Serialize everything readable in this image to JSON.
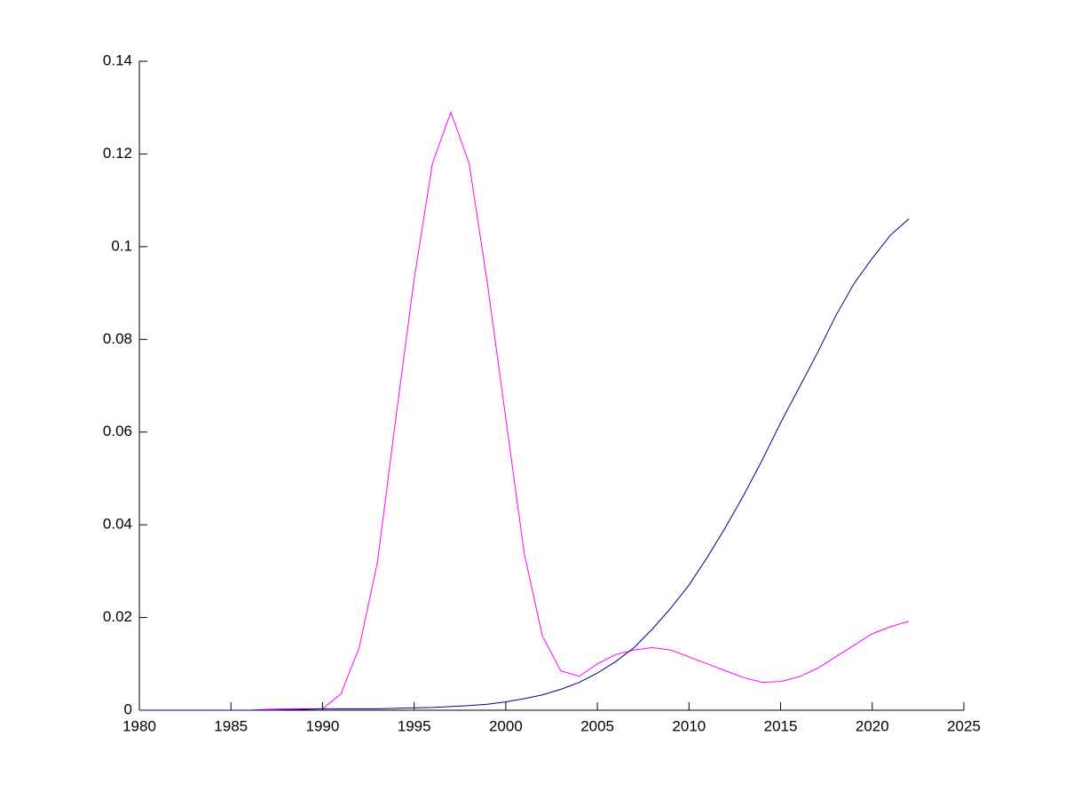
{
  "chart_data": {
    "type": "line",
    "x": [
      1980,
      1981,
      1982,
      1983,
      1984,
      1985,
      1986,
      1987,
      1988,
      1989,
      1990,
      1991,
      1992,
      1993,
      1994,
      1995,
      1996,
      1997,
      1998,
      1999,
      2000,
      2001,
      2002,
      2003,
      2004,
      2005,
      2006,
      2007,
      2008,
      2009,
      2010,
      2011,
      2012,
      2013,
      2014,
      2015,
      2016,
      2017,
      2018,
      2019,
      2020,
      2021,
      2022
    ],
    "series": [
      {
        "color": "#ff00ff",
        "values": [
          0,
          0,
          0,
          0,
          0,
          0,
          0,
          0.0002,
          0.0003,
          0.0003,
          0.0003,
          0.0035,
          0.0135,
          0.032,
          0.063,
          0.093,
          0.118,
          0.129,
          0.118,
          0.092,
          0.063,
          0.034,
          0.016,
          0.0085,
          0.0073,
          0.01,
          0.012,
          0.013,
          0.0135,
          0.013,
          0.0115,
          0.01,
          0.0085,
          0.007,
          0.006,
          0.0062,
          0.0072,
          0.009,
          0.0115,
          0.014,
          0.0165,
          0.018,
          0.0192
        ]
      },
      {
        "color": "#00008b",
        "values": [
          0,
          0,
          0,
          0,
          0,
          0,
          0,
          0,
          0.0001,
          0.0002,
          0.0003,
          0.0003,
          0.0003,
          0.0003,
          0.0004,
          0.0005,
          0.0006,
          0.0008,
          0.001,
          0.0013,
          0.0018,
          0.0025,
          0.0033,
          0.0045,
          0.006,
          0.008,
          0.0105,
          0.0135,
          0.0175,
          0.022,
          0.027,
          0.033,
          0.0395,
          0.0465,
          0.054,
          0.062,
          0.0695,
          0.077,
          0.085,
          0.092,
          0.0975,
          0.1025,
          0.106
        ]
      }
    ],
    "xlim": [
      1980,
      2025
    ],
    "xticks": [
      1980,
      1985,
      1990,
      1995,
      2000,
      2005,
      2010,
      2015,
      2020,
      2025
    ],
    "ylim": [
      0,
      0.14
    ],
    "yticks": [
      0,
      0.02,
      0.04,
      0.06,
      0.08,
      0.1,
      0.12,
      0.14
    ]
  }
}
